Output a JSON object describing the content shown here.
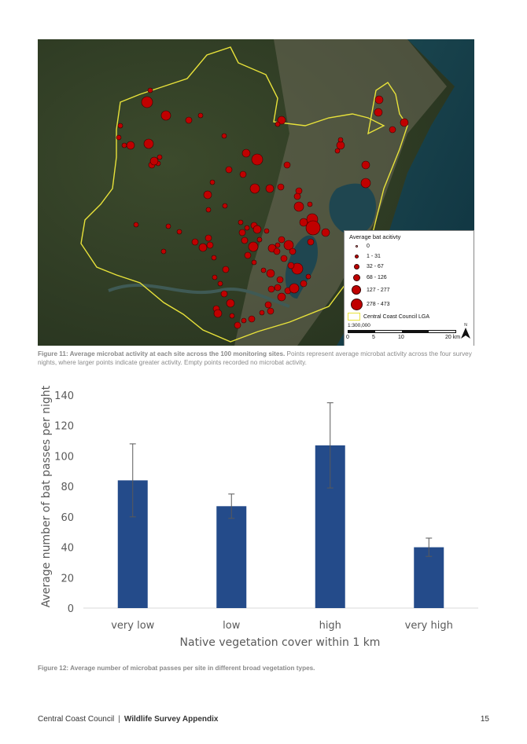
{
  "map": {
    "legend_title": "Average bat acitivty",
    "legend_classes": [
      {
        "label": "0",
        "size": 3
      },
      {
        "label": "1 - 31",
        "size": 5
      },
      {
        "label": "32 - 67",
        "size": 7
      },
      {
        "label": "68 - 126",
        "size": 9
      },
      {
        "label": "127 - 277",
        "size": 12
      },
      {
        "label": "278 - 473",
        "size": 15
      }
    ],
    "lga_label": "Central Coast Council LGA",
    "scale_text": "1:300,000",
    "scale_ticks": [
      "0",
      "5",
      "10",
      "20 km"
    ],
    "north_label": "N",
    "colors": {
      "point": "#c00000",
      "lga_boundary": "#e8e23a"
    }
  },
  "figure11": {
    "label": "Figure 11: Average microbat activity at each site across the 100 monitoring sites.",
    "text": " Points represent average microbat activity across the four survey nights, where larger points indicate greater activity. Empty points recorded no microbat activity."
  },
  "chart_data": {
    "type": "bar",
    "categories": [
      "very low",
      "low",
      "high",
      "very high"
    ],
    "values": [
      84,
      67,
      107,
      40
    ],
    "error_low": [
      60,
      59,
      79,
      34
    ],
    "error_high": [
      108,
      75,
      135,
      46
    ],
    "xlabel": "Native vegetation cover within 1 km",
    "ylabel": "Average number of bat passes per night",
    "ylim": [
      0,
      140
    ],
    "yticks": [
      0,
      20,
      40,
      60,
      80,
      100,
      120,
      140
    ],
    "bar_color": "#244b8a",
    "grid": false
  },
  "figure12": {
    "label": "Figure 12: Average number of microbat passes per site in different broad vegetation types."
  },
  "footer": {
    "org": "Central Coast Council",
    "separator": "|",
    "doc": "Wildlife Survey Appendix",
    "page": "15"
  }
}
